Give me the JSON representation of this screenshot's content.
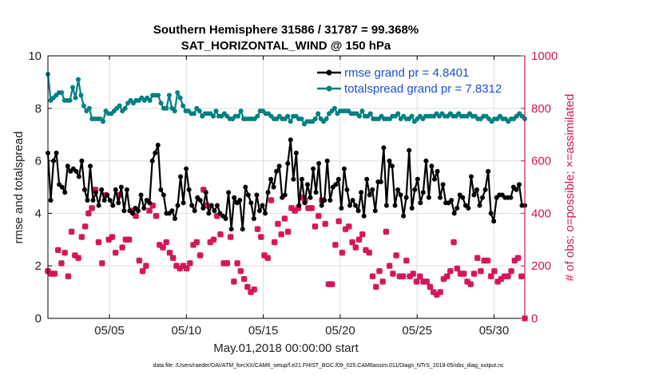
{
  "chart_data": {
    "type": "line",
    "title": "Southern Hemisphere 31586 / 31787 = 99.368%",
    "subtitle": "SAT_HORIZONTAL_WIND @ 150 hPa",
    "xlabel": "May.01,2018 00:00:00 start",
    "ylabel": "rmse and totalspread",
    "ylabel_right": "# of obs: o=possible; ×=assimilated",
    "footer": "data file: /Users/raeder/DAI/ATM_forcXX/CAM6_setup/f.e21.FHIST_BGC.f09_025.CAM6assim.011/Diags_NTrS_2018-05/obs_diag_output.nc",
    "xlim": [
      1.0,
      32.0
    ],
    "ylim": [
      0,
      10
    ],
    "ylim_right": [
      0,
      1000
    ],
    "x_ticks": [
      5,
      10,
      15,
      20,
      25,
      30
    ],
    "x_tick_labels": [
      "05/05",
      "05/10",
      "05/15",
      "05/20",
      "05/25",
      "05/30"
    ],
    "y_ticks": [
      0,
      2,
      4,
      6,
      8,
      10
    ],
    "y_tick_labels": [
      "0",
      "2",
      "4",
      "6",
      "8",
      "10"
    ],
    "y_ticks_right": [
      0,
      200,
      400,
      600,
      800,
      1000
    ],
    "y_tick_labels_right": [
      "0",
      "200",
      "400",
      "600",
      "800",
      "1000"
    ],
    "grid": true,
    "legend_position": "top-right",
    "colors": {
      "rmse": "#000000",
      "totalspread": "#008080",
      "obs": "#d4145a",
      "legend_text": "#1a4fd8",
      "right_axis": "#d4145a"
    },
    "series": [
      {
        "name": "rmse grand pr = 4.8401",
        "axis": "left",
        "values": [
          6.3,
          4.5,
          6.0,
          6.3,
          5.1,
          5.0,
          4.8,
          5.8,
          5.6,
          5.7,
          5.6,
          5.4,
          6.0,
          4.9,
          4.5,
          5.8,
          4.5,
          4.8,
          4.3,
          4.9,
          4.5,
          4.7,
          4.5,
          4.3,
          4.9,
          4.4,
          5.0,
          4.1,
          4.9,
          4.1,
          4.0,
          4.2,
          4.1,
          4.7,
          4.2,
          4.5,
          4.4,
          6.0,
          6.3,
          6.6,
          4.9,
          4.7,
          4.0,
          4.0,
          4.1,
          3.8,
          4.3,
          5.4,
          4.4,
          5.7,
          4.9,
          4.3,
          4.1,
          4.6,
          4.5,
          4.2,
          4.8,
          4.0,
          4.3,
          4.1,
          4.3,
          4.0,
          3.9,
          3.8,
          4.8,
          3.4,
          4.6,
          4.4,
          4.5,
          3.4,
          5.0,
          4.7,
          4.4,
          3.8,
          4.7,
          4.1,
          4.3,
          4.0,
          4.8,
          5.3,
          5.0,
          5.6,
          5.8,
          4.6,
          4.7,
          5.9,
          6.8,
          5.3,
          6.3,
          4.3,
          5.3,
          4.4,
          5.1,
          4.6,
          5.7,
          4.8,
          5.9,
          4.3,
          4.5,
          6.0,
          4.5,
          5.0,
          5.1,
          5.3,
          4.2,
          5.7,
          4.9,
          4.3,
          4.5,
          4.3,
          4.1,
          4.8,
          3.9,
          5.3,
          4.7,
          4.9,
          4.1,
          5.2,
          5.2,
          6.5,
          4.3,
          6.0,
          5.8,
          4.3,
          4.9,
          4.7,
          3.9,
          4.6,
          6.4,
          4.2,
          4.9,
          5.3,
          4.4,
          4.8,
          6.0,
          4.6,
          5.8,
          5.3,
          5.6,
          4.6,
          5.1,
          4.4,
          4.4,
          4.5,
          4.0,
          4.2,
          4.7,
          4.6,
          4.3,
          4.2,
          5.4,
          4.7,
          4.9,
          4.3,
          4.6,
          4.9,
          5.6,
          4.0,
          3.7,
          4.6,
          4.7,
          4.7,
          4.6,
          4.6,
          4.6,
          5.0,
          4.9,
          5.1,
          4.3,
          4.3
        ]
      },
      {
        "name": "totalspread grand pr = 7.8312",
        "axis": "left",
        "values": [
          9.3,
          8.3,
          8.4,
          8.5,
          8.6,
          8.6,
          8.3,
          8.3,
          8.3,
          8.8,
          8.4,
          9.1,
          8.5,
          8.1,
          7.9,
          8.0,
          7.6,
          7.6,
          7.6,
          7.6,
          7.5,
          7.9,
          7.8,
          7.8,
          7.9,
          8.0,
          8.1,
          7.9,
          8.0,
          8.2,
          8.3,
          8.2,
          8.3,
          8.3,
          8.4,
          8.3,
          8.4,
          8.3,
          8.5,
          8.5,
          8.5,
          8.2,
          8.0,
          8.0,
          8.5,
          8.0,
          7.9,
          8.6,
          8.4,
          8.1,
          7.9,
          7.9,
          7.8,
          7.8,
          8.0,
          7.9,
          7.7,
          7.8,
          7.8,
          7.8,
          7.7,
          7.9,
          7.7,
          7.7,
          7.8,
          7.7,
          7.6,
          7.6,
          7.7,
          7.7,
          7.9,
          7.6,
          7.6,
          7.6,
          7.6,
          7.6,
          7.7,
          7.9,
          7.9,
          7.8,
          7.8,
          7.7,
          7.6,
          7.6,
          7.7,
          7.6,
          7.6,
          7.7,
          7.5,
          7.7,
          7.7,
          7.6,
          7.6,
          7.4,
          7.5,
          7.5,
          7.5,
          7.6,
          7.8,
          7.6,
          7.5,
          7.6,
          7.8,
          7.9,
          8.0,
          7.8,
          7.9,
          7.9,
          7.9,
          7.9,
          7.8,
          7.8,
          7.8,
          7.7,
          7.9,
          7.7,
          7.7,
          7.8,
          7.6,
          7.6,
          7.6,
          7.7,
          7.6,
          7.6,
          7.6,
          7.7,
          7.7,
          7.8,
          7.6,
          7.7,
          7.6,
          7.6,
          7.7,
          7.5,
          7.6,
          7.7,
          7.6,
          7.7,
          7.7,
          7.7,
          7.7,
          7.8,
          7.7,
          7.8,
          7.7,
          7.7,
          7.8,
          7.7,
          7.7,
          7.8,
          7.7,
          7.7,
          7.7,
          7.8,
          7.7,
          7.7,
          7.6,
          7.6,
          7.7,
          7.7,
          7.6,
          7.5,
          7.6,
          7.6,
          7.7,
          7.6,
          7.6,
          7.5,
          7.6,
          7.6,
          7.7,
          7.8,
          7.7,
          7.6
        ]
      },
      {
        "name": "obs possible",
        "axis": "right",
        "values": [
          180,
          170,
          170,
          260,
          210,
          250,
          160,
          330,
          240,
          230,
          310,
          350,
          400,
          420,
          490,
          290,
          210,
          470,
          300,
          310,
          250,
          470,
          270,
          300,
          300,
          410,
          390,
          220,
          180,
          200,
          410,
          430,
          390,
          280,
          270,
          290,
          250,
          230,
          200,
          190,
          200,
          190,
          210,
          280,
          290,
          240,
          490,
          430,
          290,
          300,
          390,
          320,
          210,
          210,
          310,
          140,
          210,
          180,
          150,
          120,
          100,
          110,
          340,
          310,
          240,
          230,
          450,
          290,
          360,
          320,
          380,
          330,
          420,
          410,
          420,
          460,
          450,
          420,
          420,
          350,
          390,
          450,
          360,
          130,
          130,
          280,
          370,
          250,
          340,
          350,
          290,
          270,
          300,
          320,
          260,
          250,
          160,
          120,
          180,
          140,
          330,
          200,
          170,
          240,
          160,
          160,
          220,
          160,
          170,
          140,
          160,
          140,
          140,
          120,
          100,
          90,
          100,
          150,
          160,
          180,
          290,
          190,
          170,
          170,
          140,
          130,
          170,
          230,
          180,
          220,
          220,
          160,
          180,
          140,
          150,
          160,
          160,
          180,
          220,
          230,
          160,
          0
        ]
      },
      {
        "name": "obs assimilated",
        "axis": "right",
        "values": [
          180,
          170,
          170,
          260,
          210,
          250,
          160,
          330,
          240,
          230,
          310,
          350,
          400,
          420,
          490,
          290,
          210,
          470,
          300,
          310,
          250,
          470,
          270,
          300,
          300,
          410,
          390,
          220,
          180,
          200,
          410,
          430,
          390,
          280,
          270,
          290,
          250,
          230,
          200,
          190,
          200,
          190,
          210,
          280,
          290,
          240,
          490,
          430,
          290,
          300,
          390,
          320,
          210,
          210,
          310,
          140,
          210,
          180,
          150,
          120,
          100,
          110,
          340,
          310,
          240,
          230,
          450,
          290,
          360,
          320,
          380,
          330,
          420,
          410,
          420,
          460,
          450,
          420,
          420,
          350,
          390,
          450,
          360,
          130,
          130,
          280,
          370,
          250,
          340,
          350,
          290,
          270,
          300,
          320,
          260,
          250,
          160,
          120,
          180,
          140,
          330,
          200,
          170,
          240,
          160,
          160,
          220,
          160,
          170,
          140,
          160,
          140,
          140,
          120,
          100,
          90,
          100,
          150,
          160,
          180,
          290,
          190,
          170,
          170,
          140,
          130,
          170,
          230,
          180,
          220,
          220,
          160,
          180,
          140,
          150,
          160,
          160,
          180,
          220,
          230,
          160,
          0
        ]
      }
    ]
  }
}
